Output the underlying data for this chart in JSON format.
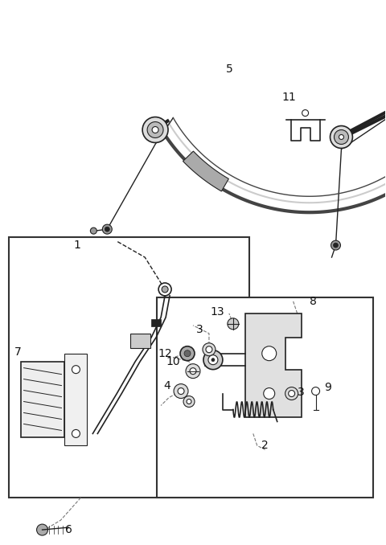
{
  "bg_color": "#ffffff",
  "lc": "#444444",
  "dc": "#222222",
  "gc": "#888888",
  "fig_width": 4.8,
  "fig_height": 6.78,
  "dpi": 100,
  "xlim": [
    0,
    480
  ],
  "ylim": [
    0,
    678
  ]
}
